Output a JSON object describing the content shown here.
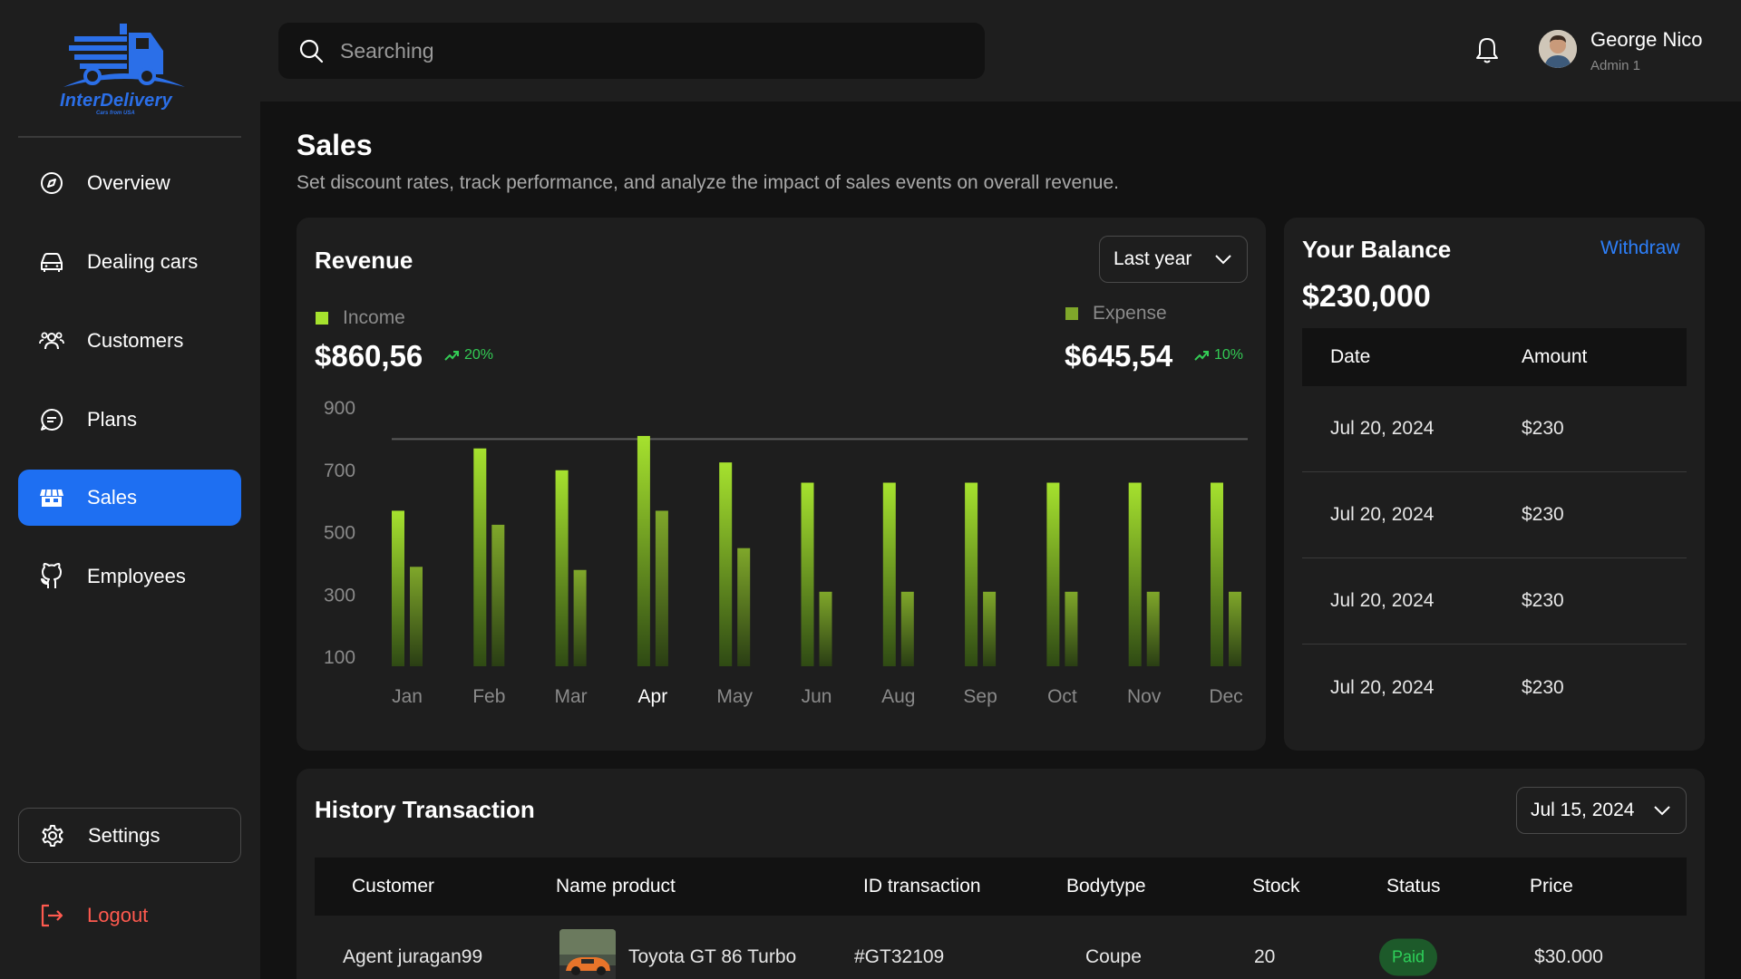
{
  "app": {
    "logo_text": "InterDelivery",
    "logo_tagline": "Cars from USA"
  },
  "sidebar": {
    "items": [
      {
        "label": "Overview",
        "icon": "compass-icon"
      },
      {
        "label": "Dealing cars",
        "icon": "car-icon"
      },
      {
        "label": "Customers",
        "icon": "users-icon"
      },
      {
        "label": "Plans",
        "icon": "chat-icon"
      },
      {
        "label": "Sales",
        "icon": "shop-icon",
        "active": true
      },
      {
        "label": "Employees",
        "icon": "github-icon"
      }
    ],
    "settings_label": "Settings",
    "logout_label": "Logout"
  },
  "topbar": {
    "search_placeholder": "Searching",
    "user_name": "George Nico",
    "user_role": "Admin 1"
  },
  "page": {
    "title": "Sales",
    "subtitle": "Set discount rates, track performance, and analyze the impact of sales events on overall revenue."
  },
  "revenue": {
    "title": "Revenue",
    "period_select": "Last year",
    "income_label": "Income",
    "income_value": "$860,56",
    "income_trend": "20%",
    "expense_label": "Expense",
    "expense_value": "$645,54",
    "expense_trend": "10%"
  },
  "colors": {
    "accent": "#1e6ff2",
    "income": "#a6e22e",
    "expense": "#7fa72a",
    "positive": "#33cc55",
    "logout": "#ff5a4f",
    "link": "#2d7ff9"
  },
  "chart_data": {
    "type": "bar",
    "categories": [
      "Jan",
      "Feb",
      "Mar",
      "Apr",
      "May",
      "Jun",
      "Aug",
      "Sep",
      "Oct",
      "Nov",
      "Dec"
    ],
    "highlight_category": "Apr",
    "series": [
      {
        "name": "Income",
        "values": [
          570,
          770,
          700,
          810,
          725,
          660,
          660,
          660,
          660,
          660,
          660
        ]
      },
      {
        "name": "Expense",
        "values": [
          390,
          525,
          380,
          570,
          450,
          310,
          310,
          310,
          310,
          310,
          310
        ]
      }
    ],
    "y_ticks": [
      900,
      700,
      500,
      300,
      100
    ],
    "ylim": [
      100,
      900
    ],
    "reference_line": 800,
    "grid": false,
    "legend": "top"
  },
  "balance": {
    "title": "Your Balance",
    "withdraw_label": "Withdraw",
    "amount": "$230,000",
    "columns": [
      "Date",
      "Amount"
    ],
    "rows": [
      {
        "date": "Jul 20, 2024",
        "amount": "$230"
      },
      {
        "date": "Jul 20, 2024",
        "amount": "$230"
      },
      {
        "date": "Jul 20, 2024",
        "amount": "$230"
      },
      {
        "date": "Jul 20, 2024",
        "amount": "$230"
      }
    ]
  },
  "history": {
    "title": "History Transaction",
    "date_select": "Jul 15, 2024",
    "columns": [
      "Customer",
      "Name product",
      "ID transaction",
      "Bodytype",
      "Stock",
      "Status",
      "Price"
    ],
    "rows": [
      {
        "customer": "Agent juragan99",
        "product": "Toyota GT 86 Turbo",
        "id": "#GT32109",
        "bodytype": "Coupe",
        "stock": "20",
        "status": "Paid",
        "price": "$30.000"
      }
    ]
  }
}
